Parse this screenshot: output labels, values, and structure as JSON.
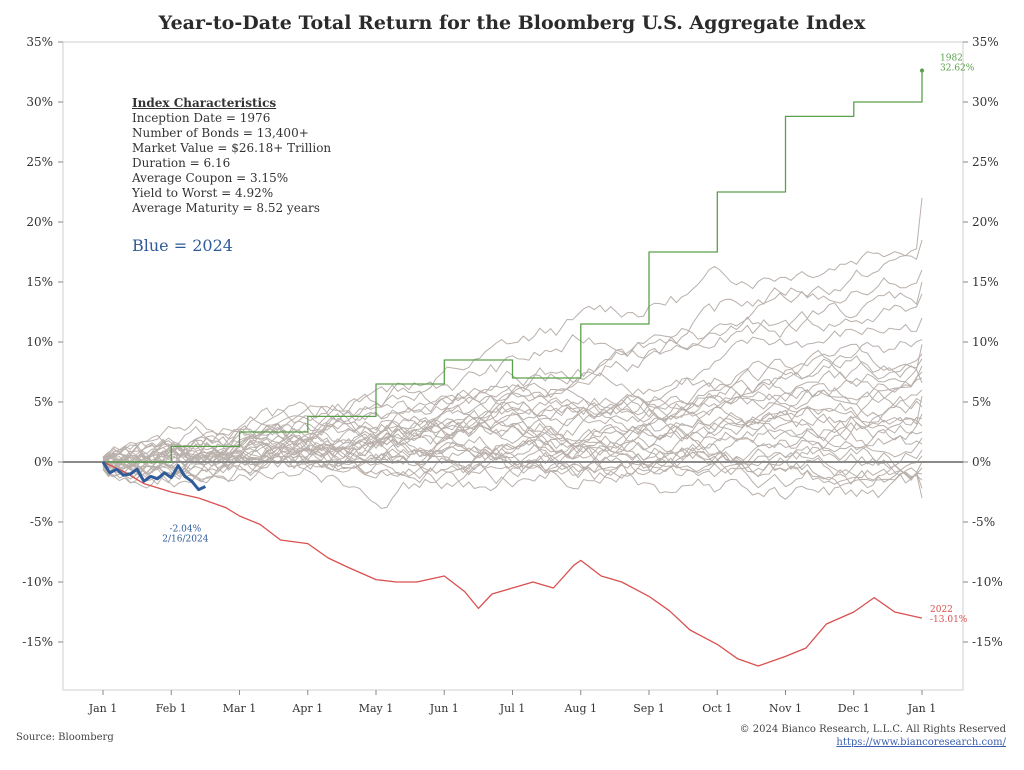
{
  "title": "Year-to-Date Total Return for the Bloomberg U.S. Aggregate Index",
  "source": "Source: Bloomberg",
  "copyright": "© 2024 Bianco Research, L.L.C. All Rights Reserved",
  "url": "https://www.biancoresearch.com/",
  "characteristics": {
    "header": "Index Characteristics",
    "lines": [
      "Inception Date = 1976",
      "Number of Bonds = 13,400+",
      "Market Value = $26.18+ Trillion",
      "Duration = 6.16",
      "Average Coupon = 3.15%",
      "Yield to Worst = 4.92%",
      "Average Maturity = 8.52 years"
    ]
  },
  "blue_note": "Blue = 2024",
  "colors": {
    "y2024": "#2f5b9a",
    "y1982": "#5aa04a",
    "y2022": "#d95050",
    "other": "#b9b0ab",
    "zero": "#8a8a8a"
  },
  "chart_data": {
    "type": "line",
    "title": "Year-to-Date Total Return for the Bloomberg U.S. Aggregate Index",
    "x_ticks": [
      "Jan 1",
      "Feb 1",
      "Mar 1",
      "Apr 1",
      "May 1",
      "Jun 1",
      "Jul 1",
      "Aug 1",
      "Sep 1",
      "Oct 1",
      "Nov 1",
      "Dec 1",
      "Jan 1"
    ],
    "x_range_months": [
      0,
      12
    ],
    "ylim": [
      -19,
      35
    ],
    "y_ticks": [
      35,
      30,
      25,
      20,
      15,
      10,
      5,
      0,
      -5,
      -10,
      -15
    ],
    "y_tick_labels_left": [
      "35%",
      "30%",
      "25%",
      "20%",
      "15%",
      "10%",
      "5%",
      "0%",
      "-5%",
      "-10%",
      "-15%"
    ],
    "y_tick_labels_right": [
      "35%",
      "30%",
      "25%",
      "20%",
      "15%",
      "10%",
      "5%",
      "0%",
      "-5%",
      "-10%",
      "-15%"
    ],
    "grid": false,
    "series": [
      {
        "name": "1982",
        "color_key": "y1982",
        "x": [
          0,
          1,
          1,
          2,
          2,
          3,
          3,
          4,
          4,
          5,
          5,
          6,
          6,
          7,
          7,
          8,
          8,
          9,
          9,
          10,
          10,
          11,
          11,
          12,
          12
        ],
        "y": [
          0,
          0,
          1.3,
          1.3,
          2.5,
          2.5,
          3.8,
          3.8,
          6.5,
          6.5,
          8.5,
          8.5,
          7,
          7,
          11.5,
          11.5,
          17.5,
          17.5,
          22.5,
          22.5,
          28.8,
          28.8,
          30,
          30,
          32.62
        ]
      },
      {
        "name": "2022",
        "color_key": "y2022",
        "x": [
          0,
          0.3,
          0.6,
          1,
          1.4,
          1.8,
          2,
          2.3,
          2.6,
          3,
          3.3,
          3.6,
          4,
          4.3,
          4.6,
          5,
          5.3,
          5.5,
          5.7,
          6,
          6.3,
          6.6,
          6.9,
          7,
          7.3,
          7.6,
          8,
          8.3,
          8.6,
          9,
          9.3,
          9.6,
          10,
          10.3,
          10.6,
          11,
          11.3,
          11.6,
          12
        ],
        "y": [
          0,
          -0.8,
          -1.8,
          -2.5,
          -3,
          -3.8,
          -4.5,
          -5.2,
          -6.5,
          -6.8,
          -8,
          -8.8,
          -9.8,
          -10,
          -10,
          -9.5,
          -10.8,
          -12.2,
          -11,
          -10.5,
          -10,
          -10.5,
          -8.6,
          -8.2,
          -9.5,
          -10,
          -11.2,
          -12.4,
          -14,
          -15.2,
          -16.4,
          -17,
          -16.2,
          -15.5,
          -13.5,
          -12.5,
          -11.3,
          -12.5,
          -13.01
        ]
      },
      {
        "name": "2024",
        "color_key": "y2024",
        "x": [
          0,
          0.1,
          0.2,
          0.3,
          0.4,
          0.5,
          0.6,
          0.7,
          0.8,
          0.9,
          1.0,
          1.1,
          1.2,
          1.3,
          1.4,
          1.5
        ],
        "y": [
          0,
          -0.9,
          -0.6,
          -1.1,
          -1.0,
          -0.6,
          -1.6,
          -1.2,
          -1.4,
          -0.9,
          -1.3,
          -0.3,
          -1.2,
          -1.6,
          -2.3,
          -2.04
        ]
      }
    ],
    "annotations": [
      {
        "series": "2024",
        "text": [
          "-2.04%",
          "2/16/2024"
        ]
      },
      {
        "series": "1982",
        "text": [
          "1982",
          "32.62%"
        ]
      },
      {
        "series": "2022",
        "text": [
          "2022",
          "-13.01%"
        ]
      }
    ]
  }
}
